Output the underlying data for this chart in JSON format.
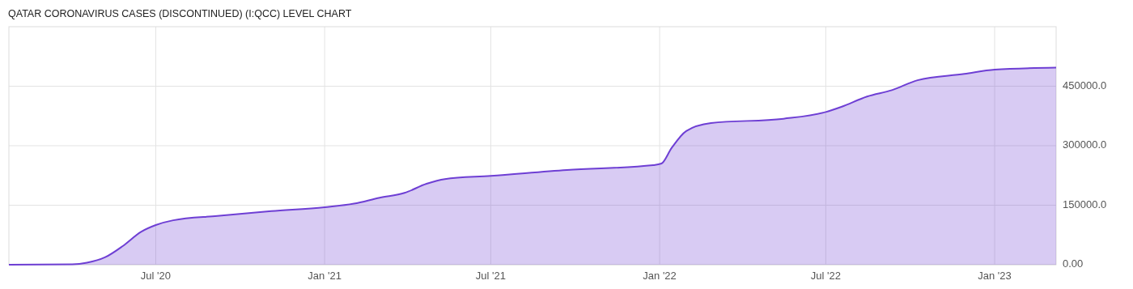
{
  "chart_data": {
    "type": "area",
    "title": "QATAR CORONAVIRUS CASES (DISCONTINUED) (I:QCC) LEVEL CHART",
    "x": [
      "2020-01-23",
      "2020-04-01",
      "2020-04-17",
      "2020-05-07",
      "2020-05-26",
      "2020-06-15",
      "2020-07-01",
      "2020-07-20",
      "2020-09-06",
      "2020-11-04",
      "2021-01-01",
      "2021-02-02",
      "2021-03-02",
      "2021-03-29",
      "2021-04-22",
      "2021-05-12",
      "2021-07-01",
      "2021-09-22",
      "2021-12-25",
      "2022-01-03",
      "2022-01-14",
      "2022-01-30",
      "2022-02-26",
      "2022-05-16",
      "2022-07-01",
      "2022-07-18",
      "2022-08-15",
      "2022-09-11",
      "2022-10-09",
      "2022-11-29",
      "2023-01-01",
      "2023-03-09"
    ],
    "series": [
      {
        "color": "#6e3fd4",
        "values": [
          0,
          1000,
          5000,
          19000,
          47000,
          83000,
          100000,
          112000,
          123000,
          135000,
          145000,
          154000,
          169000,
          181000,
          204000,
          216000,
          224000,
          239000,
          251000,
          255000,
          294000,
          337000,
          357000,
          368000,
          385000,
          398000,
          424000,
          440000,
          465000,
          481000,
          492000,
          497000
        ]
      }
    ],
    "xlim": [
      "2020-01-23",
      "2023-03-09"
    ],
    "xticks": [
      {
        "value": "2020-07-01",
        "label": "Jul '20"
      },
      {
        "value": "2021-01-01",
        "label": "Jan '21"
      },
      {
        "value": "2021-07-01",
        "label": "Jul '21"
      },
      {
        "value": "2022-01-01",
        "label": "Jan '22"
      },
      {
        "value": "2022-07-01",
        "label": "Jul '22"
      },
      {
        "value": "2023-01-01",
        "label": "Jan '23"
      }
    ],
    "ylim": [
      0,
      600000
    ],
    "yticks": [
      {
        "value": 0,
        "label": "0.00"
      },
      {
        "value": 150000,
        "label": "150000.0"
      },
      {
        "value": 300000,
        "label": "300000.0"
      },
      {
        "value": 450000,
        "label": "450000.0"
      }
    ],
    "grid": true
  }
}
